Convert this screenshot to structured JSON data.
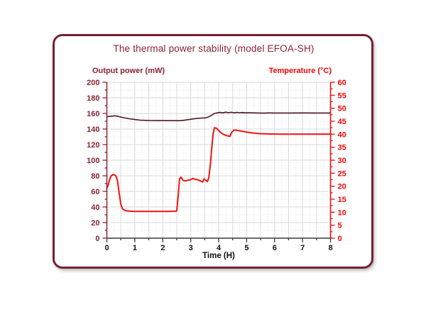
{
  "frame": {
    "border_color": "#772031"
  },
  "chart_data": {
    "type": "line",
    "title": "The thermal power stability (model EFOA-SH)",
    "title_color": "#8b2232",
    "xlabel": "Time (H)",
    "grid": {
      "on": true,
      "major_color": "#d9d9d9",
      "minor_color": "#e6e6e6"
    },
    "legend_position": "none",
    "x_axis": {
      "min": 0,
      "max": 8,
      "major_step": 1,
      "minor_step": 0.5,
      "grid_minor_step": 0.25,
      "color": "#3a3a3a",
      "label_color": "#111111"
    },
    "left_axis": {
      "label": "Output power (mW)",
      "min": 0,
      "max": 200,
      "major_step": 20,
      "minor_step": 10,
      "color": "#8b2232"
    },
    "right_axis": {
      "label": "Temperature (°C)",
      "min": 0,
      "max": 60,
      "major_step": 5,
      "minor_step": 2.5,
      "color": "#f40606"
    },
    "series": [
      {
        "name": "Output power (mW)",
        "axis": "left",
        "color": "#4f181d",
        "width": 1.6,
        "points": [
          [
            0,
            155.8
          ],
          [
            0.1,
            156.2
          ],
          [
            0.2,
            156.6
          ],
          [
            0.3,
            157.0
          ],
          [
            0.4,
            156.4
          ],
          [
            0.5,
            155.4
          ],
          [
            0.65,
            154.2
          ],
          [
            0.8,
            153.2
          ],
          [
            1.0,
            152.2
          ],
          [
            1.2,
            151.4
          ],
          [
            1.4,
            151.1
          ],
          [
            1.6,
            150.9
          ],
          [
            1.8,
            150.8
          ],
          [
            2.0,
            150.8
          ],
          [
            2.2,
            150.7
          ],
          [
            2.4,
            150.7
          ],
          [
            2.6,
            150.7
          ],
          [
            2.75,
            151.2
          ],
          [
            2.9,
            152.0
          ],
          [
            3.05,
            152.8
          ],
          [
            3.2,
            153.5
          ],
          [
            3.35,
            153.9
          ],
          [
            3.5,
            154.3
          ],
          [
            3.6,
            155.0
          ],
          [
            3.7,
            156.6
          ],
          [
            3.8,
            158.8
          ],
          [
            3.85,
            160.0
          ],
          [
            3.95,
            160.8
          ],
          [
            4.05,
            161.3
          ],
          [
            4.15,
            160.7
          ],
          [
            4.25,
            161.6
          ],
          [
            4.35,
            160.9
          ],
          [
            4.45,
            161.5
          ],
          [
            4.55,
            160.8
          ],
          [
            4.65,
            161.4
          ],
          [
            4.75,
            160.9
          ],
          [
            4.85,
            161.2
          ],
          [
            4.95,
            160.8
          ],
          [
            5.1,
            160.9
          ],
          [
            5.3,
            160.6
          ],
          [
            5.6,
            160.4
          ],
          [
            5.8,
            160.6
          ],
          [
            6.0,
            160.5
          ],
          [
            6.5,
            160.5
          ],
          [
            7.0,
            160.6
          ],
          [
            7.5,
            160.5
          ],
          [
            8.0,
            160.5
          ]
        ]
      },
      {
        "name": "Temperature (°C)",
        "axis": "right",
        "color": "#f41111",
        "width": 2,
        "points": [
          [
            0,
            19.2
          ],
          [
            0.05,
            20.5
          ],
          [
            0.1,
            22.6
          ],
          [
            0.15,
            23.9
          ],
          [
            0.2,
            24.4
          ],
          [
            0.27,
            24.4
          ],
          [
            0.33,
            23.8
          ],
          [
            0.38,
            22.0
          ],
          [
            0.44,
            17.5
          ],
          [
            0.5,
            13.0
          ],
          [
            0.56,
            11.3
          ],
          [
            0.65,
            10.6
          ],
          [
            0.8,
            10.4
          ],
          [
            1.0,
            10.3
          ],
          [
            1.3,
            10.3
          ],
          [
            1.6,
            10.3
          ],
          [
            1.9,
            10.3
          ],
          [
            2.2,
            10.3
          ],
          [
            2.45,
            10.4
          ],
          [
            2.5,
            10.5
          ],
          [
            2.55,
            16.0
          ],
          [
            2.6,
            22.8
          ],
          [
            2.65,
            23.5
          ],
          [
            2.72,
            22.3
          ],
          [
            2.8,
            22.0
          ],
          [
            2.9,
            22.3
          ],
          [
            3.0,
            22.5
          ],
          [
            3.07,
            23.0
          ],
          [
            3.15,
            22.7
          ],
          [
            3.25,
            22.5
          ],
          [
            3.35,
            22.0
          ],
          [
            3.42,
            21.6
          ],
          [
            3.48,
            22.8
          ],
          [
            3.55,
            22.2
          ],
          [
            3.6,
            21.8
          ],
          [
            3.65,
            23.5
          ],
          [
            3.7,
            28.0
          ],
          [
            3.75,
            34.5
          ],
          [
            3.8,
            40.0
          ],
          [
            3.85,
            42.5
          ],
          [
            3.92,
            42.3
          ],
          [
            4.0,
            41.4
          ],
          [
            4.1,
            40.4
          ],
          [
            4.2,
            39.8
          ],
          [
            4.3,
            39.4
          ],
          [
            4.4,
            39.2
          ],
          [
            4.47,
            40.8
          ],
          [
            4.55,
            41.6
          ],
          [
            4.65,
            41.5
          ],
          [
            4.8,
            41.2
          ],
          [
            5.0,
            40.8
          ],
          [
            5.2,
            40.5
          ],
          [
            5.5,
            40.2
          ],
          [
            5.8,
            40.1
          ],
          [
            6.2,
            40.0
          ],
          [
            6.6,
            40.0
          ],
          [
            7.0,
            40.0
          ],
          [
            7.5,
            40.0
          ],
          [
            8.0,
            40.0
          ]
        ]
      }
    ]
  }
}
